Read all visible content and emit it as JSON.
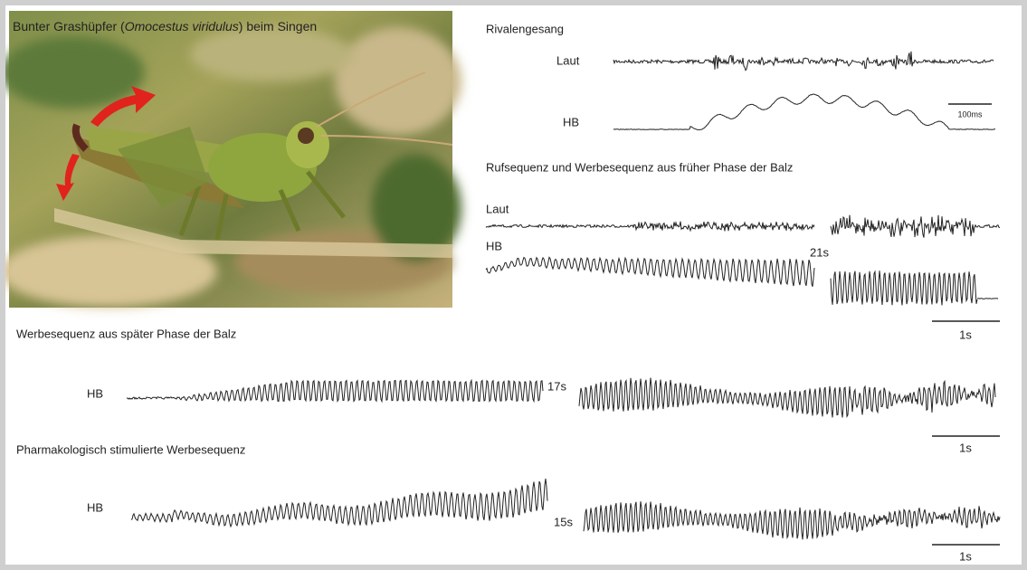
{
  "photo": {
    "caption": {
      "before": "Bunter Grashüpfer (",
      "species": "Omocestus viridulus",
      "after": ") beim Singen"
    }
  },
  "panels": [
    {
      "title": "Rivalengesang",
      "labels": [
        "Laut",
        "HB"
      ],
      "scale": "100ms"
    },
    {
      "title": "Rufsequenz und Werbesequenz aus früher Phase der Balz",
      "labels": [
        "Laut",
        "HB"
      ],
      "gap": "21s",
      "scale": "1s"
    },
    {
      "title": "Werbesequenz aus später Phase der Balz",
      "labels": [
        "HB"
      ],
      "gap": "17s",
      "scale": "1s"
    },
    {
      "title": "Pharmakologisch stimulierte Werbesequenz",
      "labels": [
        "HB"
      ],
      "gap": "15s",
      "scale": "1s"
    }
  ]
}
